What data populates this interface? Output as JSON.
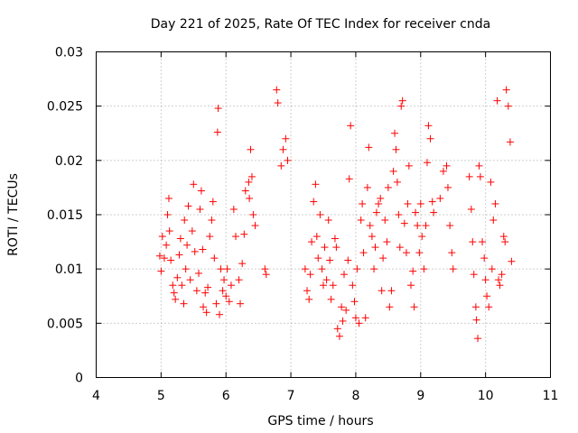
{
  "chart_data": {
    "type": "scatter",
    "title": "Day 221 of 2025, Rate Of TEC Index for receiver cnda",
    "xlabel": "GPS time / hours",
    "ylabel": "ROTI / TECUs",
    "xlim": [
      4,
      11
    ],
    "ylim": [
      0,
      0.03
    ],
    "xticks": [
      "4",
      "5",
      "6",
      "7",
      "8",
      "9",
      "10",
      "11"
    ],
    "yticks": [
      "0",
      "0.005",
      "0.01",
      "0.015",
      "0.02",
      "0.025",
      "0.03"
    ],
    "grid": true,
    "marker": "plus",
    "color": "#ff0000",
    "series": [
      {
        "name": "ROTI",
        "points": [
          [
            4.98,
            0.0112
          ],
          [
            5.0,
            0.0098
          ],
          [
            5.02,
            0.013
          ],
          [
            5.05,
            0.011
          ],
          [
            5.08,
            0.0122
          ],
          [
            5.1,
            0.015
          ],
          [
            5.12,
            0.0165
          ],
          [
            5.13,
            0.0135
          ],
          [
            5.15,
            0.0108
          ],
          [
            5.18,
            0.0085
          ],
          [
            5.2,
            0.0078
          ],
          [
            5.22,
            0.0072
          ],
          [
            5.25,
            0.0092
          ],
          [
            5.28,
            0.0113
          ],
          [
            5.3,
            0.0128
          ],
          [
            5.32,
            0.0085
          ],
          [
            5.35,
            0.0068
          ],
          [
            5.36,
            0.0145
          ],
          [
            5.38,
            0.01
          ],
          [
            5.4,
            0.0122
          ],
          [
            5.42,
            0.0158
          ],
          [
            5.45,
            0.009
          ],
          [
            5.48,
            0.0135
          ],
          [
            5.5,
            0.0178
          ],
          [
            5.52,
            0.0116
          ],
          [
            5.55,
            0.008
          ],
          [
            5.58,
            0.0096
          ],
          [
            5.6,
            0.0155
          ],
          [
            5.62,
            0.0172
          ],
          [
            5.64,
            0.0118
          ],
          [
            5.65,
            0.0065
          ],
          [
            5.68,
            0.0078
          ],
          [
            5.7,
            0.006
          ],
          [
            5.72,
            0.0083
          ],
          [
            5.75,
            0.013
          ],
          [
            5.78,
            0.0145
          ],
          [
            5.8,
            0.0162
          ],
          [
            5.82,
            0.011
          ],
          [
            5.85,
            0.0068
          ],
          [
            5.87,
            0.0226
          ],
          [
            5.88,
            0.0248
          ],
          [
            5.9,
            0.0058
          ],
          [
            5.92,
            0.01
          ],
          [
            5.95,
            0.008
          ],
          [
            5.97,
            0.009
          ],
          [
            6.0,
            0.0075
          ],
          [
            6.02,
            0.01
          ],
          [
            6.05,
            0.007
          ],
          [
            6.08,
            0.0085
          ],
          [
            6.12,
            0.0155
          ],
          [
            6.15,
            0.013
          ],
          [
            6.2,
            0.009
          ],
          [
            6.22,
            0.0068
          ],
          [
            6.25,
            0.0105
          ],
          [
            6.28,
            0.0132
          ],
          [
            6.3,
            0.0172
          ],
          [
            6.35,
            0.018
          ],
          [
            6.36,
            0.0165
          ],
          [
            6.38,
            0.021
          ],
          [
            6.4,
            0.0185
          ],
          [
            6.42,
            0.015
          ],
          [
            6.45,
            0.014
          ],
          [
            6.6,
            0.01
          ],
          [
            6.62,
            0.0095
          ],
          [
            6.78,
            0.0265
          ],
          [
            6.8,
            0.0253
          ],
          [
            6.85,
            0.0195
          ],
          [
            6.88,
            0.021
          ],
          [
            6.92,
            0.022
          ],
          [
            6.95,
            0.02
          ],
          [
            7.22,
            0.01
          ],
          [
            7.25,
            0.008
          ],
          [
            7.28,
            0.0072
          ],
          [
            7.3,
            0.0095
          ],
          [
            7.32,
            0.0125
          ],
          [
            7.35,
            0.0162
          ],
          [
            7.38,
            0.0178
          ],
          [
            7.4,
            0.013
          ],
          [
            7.42,
            0.011
          ],
          [
            7.45,
            0.015
          ],
          [
            7.48,
            0.01
          ],
          [
            7.5,
            0.0085
          ],
          [
            7.52,
            0.012
          ],
          [
            7.55,
            0.009
          ],
          [
            7.58,
            0.0145
          ],
          [
            7.6,
            0.0108
          ],
          [
            7.62,
            0.0072
          ],
          [
            7.65,
            0.0085
          ],
          [
            7.68,
            0.0128
          ],
          [
            7.7,
            0.012
          ],
          [
            7.72,
            0.0045
          ],
          [
            7.75,
            0.0038
          ],
          [
            7.78,
            0.0065
          ],
          [
            7.8,
            0.0052
          ],
          [
            7.82,
            0.0095
          ],
          [
            7.85,
            0.0062
          ],
          [
            7.88,
            0.0108
          ],
          [
            7.9,
            0.0183
          ],
          [
            7.92,
            0.0232
          ],
          [
            7.95,
            0.0085
          ],
          [
            7.98,
            0.007
          ],
          [
            8.0,
            0.0055
          ],
          [
            8.02,
            0.01
          ],
          [
            8.05,
            0.005
          ],
          [
            8.08,
            0.0145
          ],
          [
            8.1,
            0.016
          ],
          [
            8.12,
            0.0115
          ],
          [
            8.15,
            0.0055
          ],
          [
            8.18,
            0.0175
          ],
          [
            8.2,
            0.0212
          ],
          [
            8.22,
            0.014
          ],
          [
            8.25,
            0.013
          ],
          [
            8.28,
            0.01
          ],
          [
            8.3,
            0.012
          ],
          [
            8.32,
            0.0152
          ],
          [
            8.35,
            0.016
          ],
          [
            8.38,
            0.0165
          ],
          [
            8.4,
            0.008
          ],
          [
            8.42,
            0.011
          ],
          [
            8.45,
            0.0145
          ],
          [
            8.48,
            0.0125
          ],
          [
            8.5,
            0.0175
          ],
          [
            8.52,
            0.0065
          ],
          [
            8.55,
            0.008
          ],
          [
            8.58,
            0.019
          ],
          [
            8.6,
            0.0225
          ],
          [
            8.62,
            0.021
          ],
          [
            8.64,
            0.018
          ],
          [
            8.66,
            0.015
          ],
          [
            8.68,
            0.012
          ],
          [
            8.7,
            0.025
          ],
          [
            8.72,
            0.0255
          ],
          [
            8.75,
            0.0142
          ],
          [
            8.78,
            0.0115
          ],
          [
            8.8,
            0.016
          ],
          [
            8.82,
            0.0195
          ],
          [
            8.85,
            0.0085
          ],
          [
            8.88,
            0.0098
          ],
          [
            8.9,
            0.0065
          ],
          [
            8.92,
            0.0152
          ],
          [
            8.95,
            0.014
          ],
          [
            8.98,
            0.0115
          ],
          [
            9.0,
            0.016
          ],
          [
            9.02,
            0.013
          ],
          [
            9.05,
            0.01
          ],
          [
            9.08,
            0.014
          ],
          [
            9.1,
            0.0198
          ],
          [
            9.12,
            0.0232
          ],
          [
            9.15,
            0.022
          ],
          [
            9.18,
            0.0162
          ],
          [
            9.2,
            0.0152
          ],
          [
            9.3,
            0.0165
          ],
          [
            9.35,
            0.019
          ],
          [
            9.4,
            0.0195
          ],
          [
            9.42,
            0.0175
          ],
          [
            9.45,
            0.014
          ],
          [
            9.48,
            0.0115
          ],
          [
            9.5,
            0.01
          ],
          [
            9.75,
            0.0185
          ],
          [
            9.78,
            0.0155
          ],
          [
            9.8,
            0.0125
          ],
          [
            9.82,
            0.0095
          ],
          [
            9.85,
            0.0065
          ],
          [
            9.86,
            0.0053
          ],
          [
            9.88,
            0.0036
          ],
          [
            9.9,
            0.0195
          ],
          [
            9.92,
            0.0185
          ],
          [
            9.95,
            0.0125
          ],
          [
            9.98,
            0.011
          ],
          [
            10.0,
            0.009
          ],
          [
            10.02,
            0.0075
          ],
          [
            10.05,
            0.0065
          ],
          [
            10.08,
            0.018
          ],
          [
            10.1,
            0.01
          ],
          [
            10.12,
            0.0145
          ],
          [
            10.15,
            0.016
          ],
          [
            10.18,
            0.0255
          ],
          [
            10.2,
            0.009
          ],
          [
            10.22,
            0.0085
          ],
          [
            10.25,
            0.0095
          ],
          [
            10.28,
            0.013
          ],
          [
            10.3,
            0.0125
          ],
          [
            10.32,
            0.0265
          ],
          [
            10.35,
            0.025
          ],
          [
            10.38,
            0.0217
          ],
          [
            10.4,
            0.0107
          ]
        ]
      }
    ]
  }
}
